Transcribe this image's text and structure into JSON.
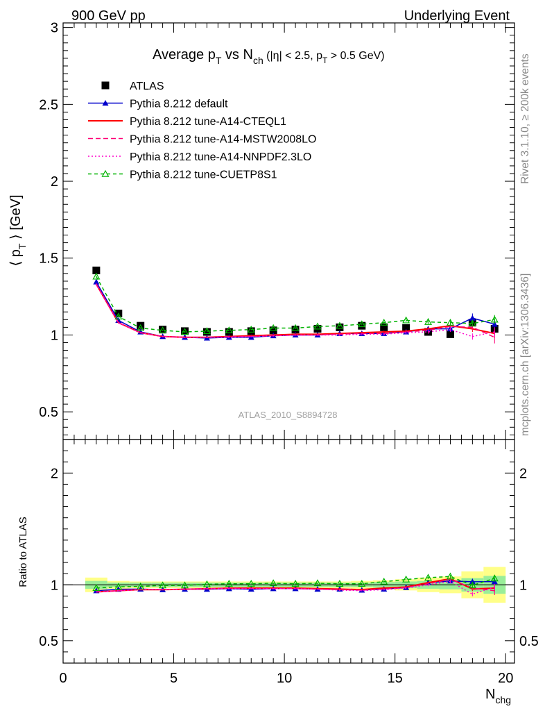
{
  "header": {
    "energy": "900 GeV pp",
    "process": "Underlying Event"
  },
  "side": {
    "rivet": "Rivet 3.1.10, ≥ 200k events",
    "source": "mcplots.cern.ch [arXiv:1306.3436]"
  },
  "chart_data": {
    "type": "line",
    "title": "Average pT vs Nch (|η| < 2.5, pT > 0.5 GeV)",
    "title_parts": {
      "lead": "Average p",
      "pt_sub": "T",
      "vs": " vs N",
      "ch_sub": "ch",
      "cut1": " (|η| < 2.5, p",
      "pt2_sub": "T",
      "cut2": " > 0.5 GeV)"
    },
    "ylabel": "⟨ pT ⟩ [GeV]",
    "ylabel_parts": {
      "open": "⟨ p",
      "sub": "T",
      "close": " ⟩ [GeV]"
    },
    "xlabel": "Nchg",
    "xlabel_parts": {
      "main": "N",
      "sub": "chg"
    },
    "ratio_ylabel": "Ratio to ATLAS",
    "watermark": "ATLAS_2010_S8894728",
    "xlim": [
      0,
      20.4
    ],
    "ylim": [
      0.32,
      3.03
    ],
    "ratio_ylim": [
      0.3,
      2.3
    ],
    "xticks": [
      0,
      5,
      10,
      15,
      20
    ],
    "xtick_labels": [
      "0",
      "5",
      "10",
      "15",
      "20"
    ],
    "yticks": [
      0.5,
      1,
      1.5,
      2,
      2.5,
      3
    ],
    "ytick_labels": [
      "0.5",
      "1",
      "1.5",
      "2",
      "2.5",
      "3"
    ],
    "ratio_yticks": [
      0.5,
      1,
      2
    ],
    "ratio_ytick_labels": [
      "0.5",
      "1",
      "2"
    ],
    "legend_position": "top-left",
    "x": [
      1.5,
      2.5,
      3.5,
      4.5,
      5.5,
      6.5,
      7.5,
      8.5,
      9.5,
      10.5,
      11.5,
      12.5,
      13.5,
      14.5,
      15.5,
      16.5,
      17.5,
      18.5,
      19.5
    ],
    "data": {
      "name": "ATLAS",
      "values": [
        1.42,
        1.14,
        1.06,
        1.035,
        1.025,
        1.02,
        1.02,
        1.025,
        1.03,
        1.035,
        1.04,
        1.05,
        1.06,
        1.05,
        1.045,
        1.02,
        1.005,
        1.08,
        1.04
      ],
      "errors": [
        0.02,
        0.01,
        0.01,
        0.01,
        0.01,
        0.01,
        0.01,
        0.01,
        0.01,
        0.01,
        0.01,
        0.01,
        0.01,
        0.015,
        0.015,
        0.02,
        0.02,
        0.03,
        0.04
      ]
    },
    "ratio_band_yellow": [
      0.065,
      0.035,
      0.03,
      0.03,
      0.03,
      0.03,
      0.03,
      0.03,
      0.03,
      0.03,
      0.03,
      0.03,
      0.035,
      0.04,
      0.05,
      0.065,
      0.075,
      0.12,
      0.16
    ],
    "ratio_band_green": [
      0.035,
      0.02,
      0.02,
      0.02,
      0.02,
      0.02,
      0.02,
      0.02,
      0.02,
      0.02,
      0.02,
      0.02,
      0.02,
      0.025,
      0.03,
      0.035,
      0.04,
      0.06,
      0.08
    ],
    "series": [
      {
        "name": "Pythia 8.212 default",
        "color": "#0000cc",
        "dash": "",
        "marker": "triangle",
        "values": [
          1.345,
          1.095,
          1.02,
          0.99,
          0.985,
          0.98,
          0.985,
          0.985,
          0.995,
          1.0,
          1.0,
          1.01,
          1.01,
          1.01,
          1.02,
          1.04,
          1.04,
          1.11,
          1.07
        ],
        "errors": [
          0.005,
          0.004,
          0.004,
          0.004,
          0.004,
          0.004,
          0.004,
          0.004,
          0.005,
          0.005,
          0.006,
          0.006,
          0.007,
          0.008,
          0.01,
          0.012,
          0.015,
          0.03,
          0.03
        ]
      },
      {
        "name": "Pythia 8.212 tune-A14-CTEQL1",
        "color": "#ff0000",
        "dash": "",
        "marker": "none",
        "values": [
          1.33,
          1.08,
          1.015,
          0.99,
          0.985,
          0.985,
          0.99,
          0.995,
          1.0,
          1.005,
          1.005,
          1.01,
          1.015,
          1.02,
          1.025,
          1.04,
          1.06,
          1.04,
          1.01
        ],
        "errors": [
          0.005,
          0.004,
          0.004,
          0.004,
          0.004,
          0.004,
          0.004,
          0.004,
          0.005,
          0.005,
          0.006,
          0.006,
          0.007,
          0.008,
          0.01,
          0.012,
          0.015,
          0.02,
          0.03
        ]
      },
      {
        "name": "Pythia 8.212 tune-A14-MSTW2008LO",
        "color": "#ff0077",
        "dash": "7,4",
        "marker": "none",
        "values": [
          1.33,
          1.08,
          1.015,
          0.99,
          0.985,
          0.985,
          0.99,
          0.99,
          0.995,
          1.0,
          1.0,
          1.005,
          1.01,
          1.01,
          1.02,
          1.03,
          1.055,
          1.05,
          0.985
        ],
        "errors": [
          0.005,
          0.004,
          0.004,
          0.004,
          0.004,
          0.004,
          0.004,
          0.004,
          0.005,
          0.005,
          0.006,
          0.006,
          0.007,
          0.008,
          0.01,
          0.012,
          0.015,
          0.02,
          0.04
        ]
      },
      {
        "name": "Pythia 8.212 tune-A14-NNPDF2.3LO",
        "color": "#ff00cc",
        "dash": "2,3",
        "marker": "none",
        "values": [
          1.33,
          1.08,
          1.015,
          0.99,
          0.985,
          0.985,
          0.985,
          0.99,
          0.995,
          1.0,
          1.0,
          1.0,
          1.005,
          1.005,
          1.015,
          1.02,
          1.035,
          0.99,
          1.02
        ],
        "errors": [
          0.005,
          0.004,
          0.004,
          0.004,
          0.004,
          0.004,
          0.004,
          0.004,
          0.005,
          0.005,
          0.006,
          0.006,
          0.007,
          0.008,
          0.01,
          0.012,
          0.015,
          0.02,
          0.03
        ]
      },
      {
        "name": "Pythia 8.212 tune-CUETP8S1",
        "color": "#00b300",
        "dash": "5,4",
        "marker": "open-triangle",
        "values": [
          1.38,
          1.12,
          1.045,
          1.03,
          1.02,
          1.025,
          1.03,
          1.035,
          1.045,
          1.045,
          1.055,
          1.06,
          1.07,
          1.08,
          1.095,
          1.085,
          1.08,
          1.075,
          1.1
        ],
        "errors": [
          0.005,
          0.004,
          0.004,
          0.004,
          0.004,
          0.004,
          0.004,
          0.004,
          0.005,
          0.005,
          0.006,
          0.006,
          0.007,
          0.008,
          0.01,
          0.012,
          0.015,
          0.02,
          0.03
        ]
      }
    ]
  }
}
